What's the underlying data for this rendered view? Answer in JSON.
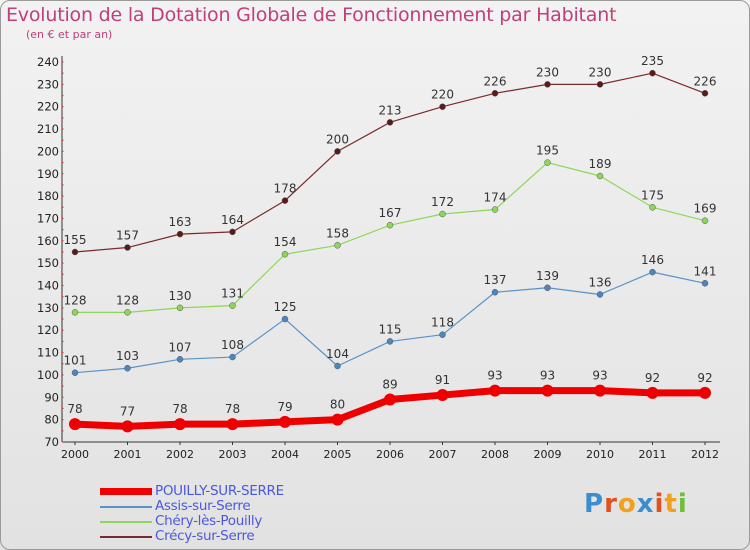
{
  "title": "Evolution de la Dotation Globale de Fonctionnement par Habitant",
  "subtitle": "(en € et par an)",
  "logo": {
    "letters": [
      "P",
      "r",
      "o",
      "x",
      "i",
      "t",
      "i"
    ],
    "colors": [
      "#3a8ed0",
      "#e2501c",
      "#f0a21c",
      "#3a8ed0",
      "#e2501c",
      "#f0a21c",
      "#6cbf3a"
    ]
  },
  "chart_data": {
    "type": "line",
    "title": "Evolution de la Dotation Globale de Fonctionnement par Habitant",
    "subtitle": "(en € et par an)",
    "xlabel": "",
    "ylabel": "",
    "ylim": [
      70,
      240
    ],
    "yticks": [
      70,
      80,
      90,
      100,
      110,
      120,
      130,
      140,
      150,
      160,
      170,
      180,
      190,
      200,
      210,
      220,
      230,
      240
    ],
    "categories": [
      "2000",
      "2001",
      "2002",
      "2003",
      "2004",
      "2005",
      "2006",
      "2007",
      "2008",
      "2009",
      "2010",
      "2011",
      "2012"
    ],
    "series": [
      {
        "name": "Crécy-sur-Serre",
        "color": "#7a2a2a",
        "dot": "#5a1a1a",
        "width": 1.2,
        "values": [
          155,
          157,
          163,
          164,
          178,
          200,
          213,
          220,
          226,
          230,
          230,
          235,
          226
        ]
      },
      {
        "name": "Chéry-lès-Pouilly",
        "color": "#8ed65a",
        "dot": "#8ed65a",
        "width": 1.2,
        "values": [
          128,
          128,
          130,
          131,
          154,
          158,
          167,
          172,
          174,
          195,
          189,
          175,
          169
        ]
      },
      {
        "name": "Assis-sur-Serre",
        "color": "#5a93c8",
        "dot": "#4a86c0",
        "width": 1.2,
        "values": [
          101,
          103,
          107,
          108,
          125,
          104,
          115,
          118,
          137,
          139,
          136,
          146,
          141
        ]
      },
      {
        "name": "POUILLY-SUR-SERRE",
        "color": "#ee0000",
        "dot": "#ee0000",
        "width": 7,
        "values": [
          78,
          77,
          78,
          78,
          79,
          80,
          89,
          91,
          93,
          93,
          93,
          92,
          92
        ]
      }
    ],
    "legend": {
      "position": "bottom-left",
      "order": [
        "POUILLY-SUR-SERRE",
        "Assis-sur-Serre",
        "Chéry-lès-Pouilly",
        "Crécy-sur-Serre"
      ]
    },
    "grid": false
  }
}
